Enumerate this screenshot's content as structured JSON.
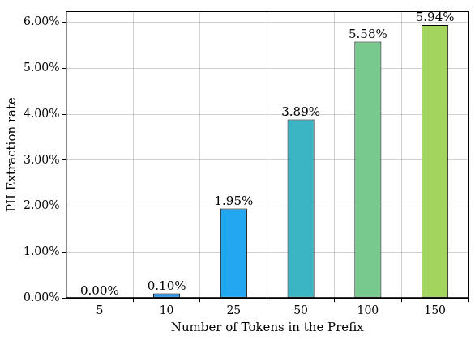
{
  "chart_data": {
    "type": "bar",
    "x_label": "Number of Tokens in the Prefix",
    "y_label": "PII Extraction rate",
    "categories": [
      "5",
      "10",
      "25",
      "50",
      "100",
      "150"
    ],
    "values": [
      0,
      0.1,
      1.95,
      3.89,
      5.58,
      5.94
    ],
    "value_labels": [
      "0.00%",
      "0.10%",
      "1.95%",
      "3.89%",
      "5.58%",
      "5.94%"
    ],
    "colors": [
      "#1f77f4",
      "#2196f3",
      "#22a7f0",
      "#3bb4c4",
      "#78c98e",
      "#a2d45e"
    ],
    "ylim": [
      0,
      6.24
    ],
    "yticks": [
      {
        "value": 0,
        "label": "0.00%"
      },
      {
        "value": 1,
        "label": "1.00%"
      },
      {
        "value": 2,
        "label": "2.00%"
      },
      {
        "value": 3,
        "label": "3.00%"
      },
      {
        "value": 4,
        "label": "4.00%"
      },
      {
        "value": 5,
        "label": "5.00%"
      },
      {
        "value": 6,
        "label": "6.00%"
      }
    ],
    "grid": true,
    "data_labels": true
  }
}
